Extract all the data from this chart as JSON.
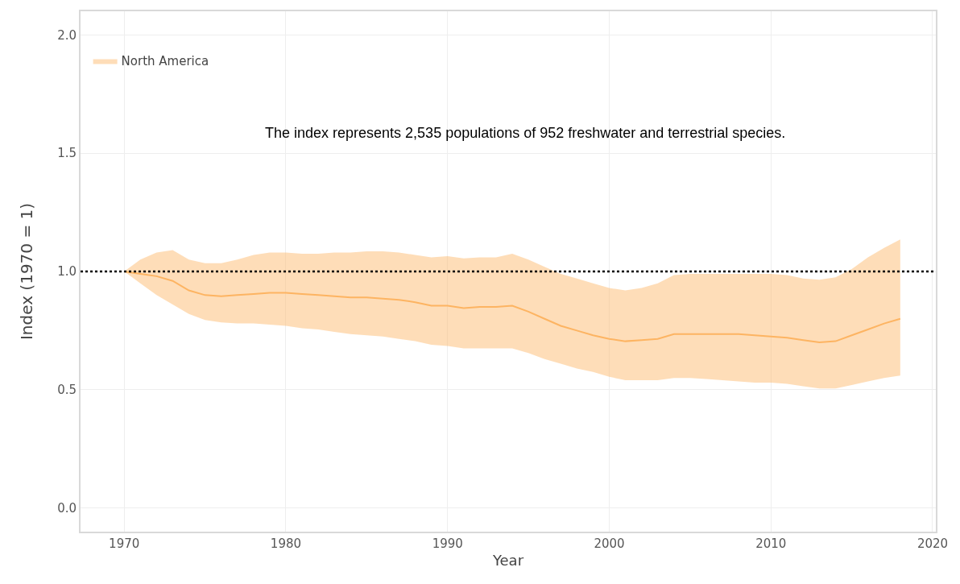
{
  "chart_data": {
    "type": "line",
    "xlabel": "Year",
    "ylabel": "Index (1970 = 1)",
    "annotations": [
      "The index represents 2,535 populations of 952 freshwater and terrestrial species."
    ],
    "x": [
      1970,
      1971,
      1972,
      1973,
      1974,
      1975,
      1976,
      1977,
      1978,
      1979,
      1980,
      1981,
      1982,
      1983,
      1984,
      1985,
      1986,
      1987,
      1988,
      1989,
      1990,
      1991,
      1992,
      1993,
      1994,
      1995,
      1996,
      1997,
      1998,
      1999,
      2000,
      2001,
      2002,
      2003,
      2004,
      2005,
      2006,
      2007,
      2008,
      2009,
      2010,
      2011,
      2012,
      2013,
      2014,
      2015,
      2016,
      2017,
      2018
    ],
    "series": [
      {
        "name": "North America",
        "color": "#fdb462",
        "values": [
          1.0,
          0.99,
          0.98,
          0.96,
          0.92,
          0.9,
          0.895,
          0.9,
          0.905,
          0.91,
          0.91,
          0.905,
          0.9,
          0.895,
          0.89,
          0.89,
          0.885,
          0.88,
          0.87,
          0.855,
          0.855,
          0.845,
          0.85,
          0.85,
          0.855,
          0.83,
          0.8,
          0.77,
          0.75,
          0.73,
          0.715,
          0.705,
          0.71,
          0.715,
          0.735,
          0.735,
          0.735,
          0.735,
          0.735,
          0.73,
          0.725,
          0.72,
          0.71,
          0.7,
          0.705,
          0.73,
          0.755,
          0.78,
          0.8
        ],
        "upper": [
          1.0,
          1.05,
          1.08,
          1.09,
          1.05,
          1.035,
          1.035,
          1.05,
          1.07,
          1.08,
          1.08,
          1.075,
          1.075,
          1.08,
          1.08,
          1.085,
          1.085,
          1.08,
          1.07,
          1.06,
          1.065,
          1.055,
          1.06,
          1.06,
          1.075,
          1.05,
          1.02,
          0.99,
          0.97,
          0.95,
          0.93,
          0.92,
          0.93,
          0.95,
          0.985,
          0.99,
          0.99,
          0.99,
          0.99,
          0.99,
          0.99,
          0.985,
          0.97,
          0.965,
          0.975,
          1.01,
          1.06,
          1.1,
          1.135
        ],
        "lower": [
          1.0,
          0.95,
          0.9,
          0.86,
          0.82,
          0.795,
          0.785,
          0.78,
          0.78,
          0.775,
          0.77,
          0.76,
          0.755,
          0.745,
          0.735,
          0.73,
          0.725,
          0.715,
          0.705,
          0.69,
          0.685,
          0.675,
          0.675,
          0.675,
          0.675,
          0.655,
          0.63,
          0.61,
          0.59,
          0.575,
          0.555,
          0.54,
          0.54,
          0.54,
          0.55,
          0.55,
          0.545,
          0.54,
          0.535,
          0.53,
          0.53,
          0.525,
          0.515,
          0.505,
          0.505,
          0.52,
          0.535,
          0.55,
          0.56
        ]
      }
    ],
    "xlim": [
      1967.3,
      2020.2
    ],
    "xticks": [
      1970,
      1980,
      1990,
      2000,
      2010,
      2020
    ],
    "ylim": [
      -0.1,
      2.1
    ],
    "yticks": [
      {
        "value": 0,
        "label": "0.0"
      },
      0.5,
      {
        "value": 1,
        "label": "1.0"
      },
      1.5,
      {
        "value": 2,
        "label": "2.0"
      }
    ],
    "ref_lines": [
      {
        "axis": "y",
        "value": 1,
        "color": "#000000",
        "line_style": "dotted"
      }
    ],
    "grid": true,
    "legend": "top left",
    "marker": "none",
    "line_style": "solid"
  }
}
